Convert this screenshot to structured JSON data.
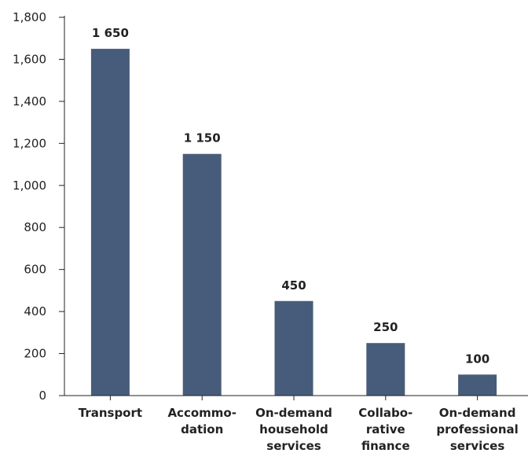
{
  "chart_data": {
    "type": "bar",
    "title": "",
    "xlabel": "",
    "ylabel": "",
    "categories": [
      [
        "Transport"
      ],
      [
        "Accommo-",
        "dation"
      ],
      [
        "On-demand",
        "household",
        "services"
      ],
      [
        "Collabo-",
        "rative",
        "finance"
      ],
      [
        "On-demand",
        "professional",
        "services"
      ]
    ],
    "values": [
      1650,
      1150,
      450,
      250,
      100
    ],
    "value_labels": [
      "1 650",
      "1 150",
      "450",
      "250",
      "100"
    ],
    "ylim": [
      0,
      1800
    ],
    "yticks": [
      0,
      200,
      400,
      600,
      800,
      1000,
      1200,
      1400,
      1600,
      1800
    ],
    "ytick_labels": [
      "0",
      "200",
      "400",
      "600",
      "800",
      "1,000",
      "1,200",
      "1,400",
      "1,600",
      "1,800"
    ],
    "grid": false,
    "bar_color": "#475c7a"
  }
}
